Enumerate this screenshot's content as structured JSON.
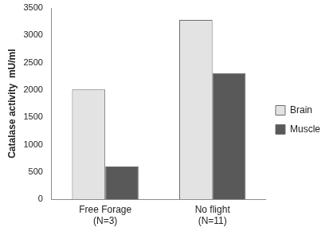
{
  "chart_data": {
    "type": "bar",
    "y_label": "Catalase activity  mU/ml",
    "categories": [
      "Free Forage (N=3)",
      "No flight (N=11)"
    ],
    "series": [
      {
        "name": "Brain",
        "color": "#e3e3e3",
        "values": [
          2010,
          3280
        ]
      },
      {
        "name": "Muscle",
        "color": "#595959",
        "values": [
          600,
          2310
        ]
      }
    ],
    "ylim": [
      0,
      3500
    ],
    "yticks": [
      0,
      500,
      1000,
      1500,
      2000,
      2500,
      3000,
      3500
    ],
    "grid": false,
    "legend": "right"
  }
}
